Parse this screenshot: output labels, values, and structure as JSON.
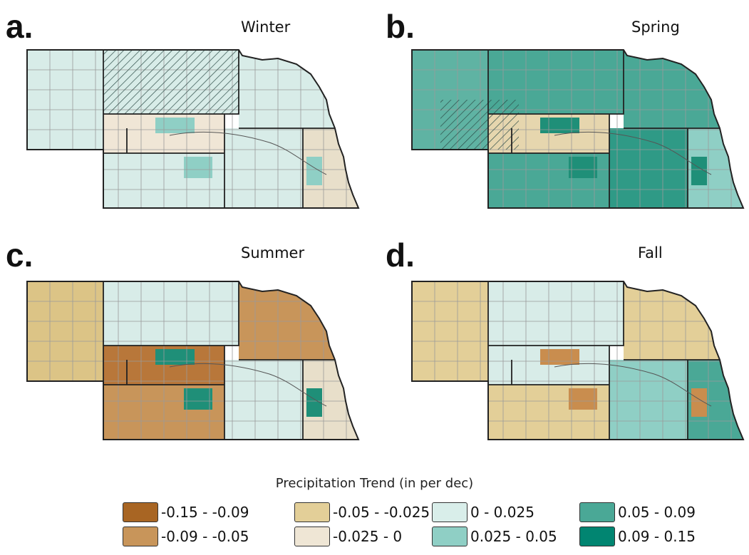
{
  "panels": [
    {
      "letter": "a.",
      "title": "Winter",
      "fill": [
        "#d8ece8",
        "#d8ece8",
        "#d8ece8",
        "#f0e6d6",
        "#d8ece8",
        "#d8ece8",
        "#e8dfca"
      ],
      "accent": "#8fcfc5",
      "hatch": true
    },
    {
      "letter": "b.",
      "title": "Spring",
      "fill": [
        "#5fb3a3",
        "#4aa896",
        "#4aa896",
        "#e6d6ae",
        "#4aa896",
        "#2f9a86",
        "#8fcfc5"
      ],
      "accent": "#1f8f78",
      "hatch": true
    },
    {
      "letter": "c.",
      "title": "Summer",
      "fill": [
        "#dcc486",
        "#d8ece8",
        "#c8955a",
        "#b8773a",
        "#c8955a",
        "#d8ece8",
        "#e8dfca"
      ],
      "accent": "#1f8f78",
      "hatch": false
    },
    {
      "letter": "d.",
      "title": "Fall",
      "fill": [
        "#e3cf98",
        "#d8ece8",
        "#e3cf98",
        "#d8ece8",
        "#e3cf98",
        "#8fcfc5",
        "#4aa896"
      ],
      "accent": "#c98d4e",
      "hatch": true
    }
  ],
  "legend": {
    "title": "Precipitation Trend (in per dec)",
    "items": [
      {
        "label": "-0.15 - -0.09",
        "color": "#a86523"
      },
      {
        "label": "-0.05 - -0.025",
        "color": "#e3cf98"
      },
      {
        "label": "0 - 0.025",
        "color": "#d9eeea"
      },
      {
        "label": "0.05 - 0.09",
        "color": "#4aa896"
      },
      {
        "label": "-0.09 - -0.05",
        "color": "#c8955a"
      },
      {
        "label": "-0.025 - 0",
        "color": "#efe6d5"
      },
      {
        "label": "0.025 - 0.05",
        "color": "#8fcfc5"
      },
      {
        "label": "0.09 - 0.15",
        "color": "#018571"
      }
    ]
  }
}
